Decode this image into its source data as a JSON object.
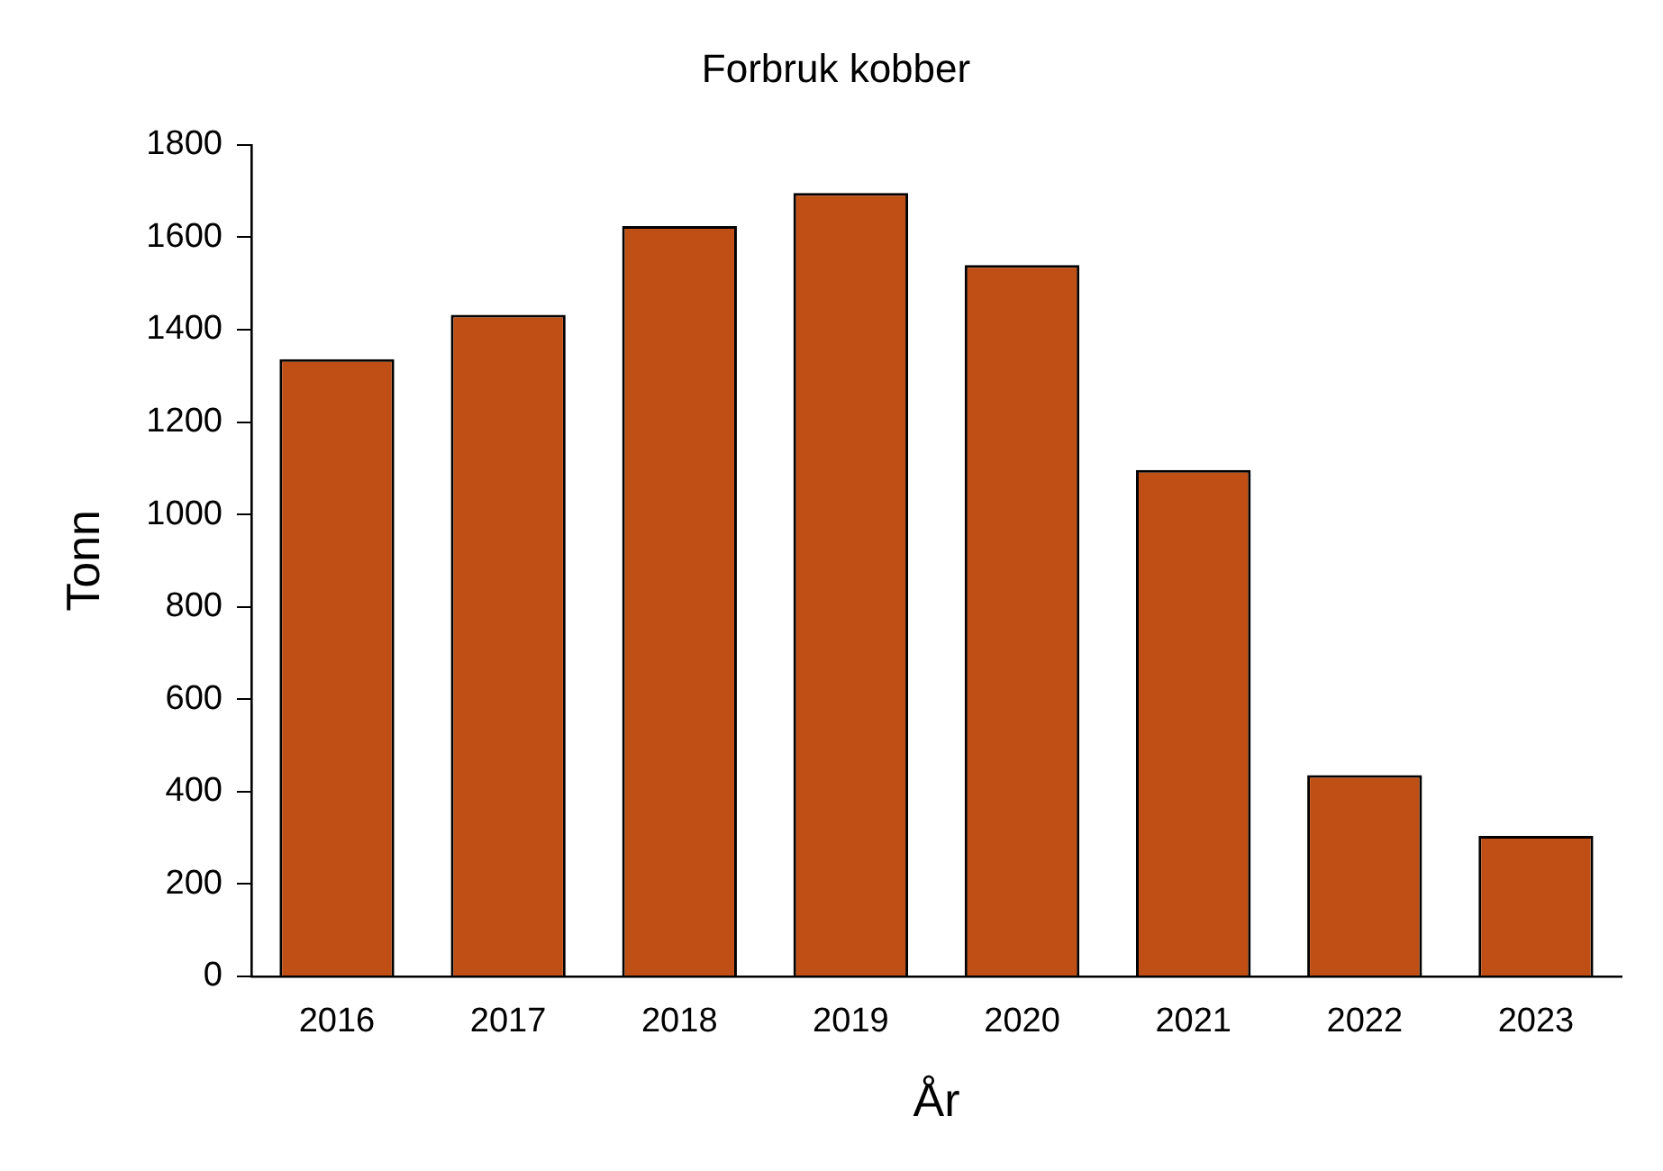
{
  "chart_data": {
    "type": "bar",
    "title": "Forbruk kobber",
    "xlabel": "År",
    "ylabel": "Tonn",
    "categories": [
      "2016",
      "2017",
      "2018",
      "2019",
      "2020",
      "2021",
      "2022",
      "2023"
    ],
    "values": [
      1336,
      1432,
      1624,
      1696,
      1540,
      1096,
      436,
      304
    ],
    "color": "#c04f15",
    "ylim": [
      0,
      1800
    ],
    "yticks": [
      0,
      200,
      400,
      600,
      800,
      1000,
      1200,
      1400,
      1600,
      1800
    ],
    "grid": false,
    "legend": false
  }
}
